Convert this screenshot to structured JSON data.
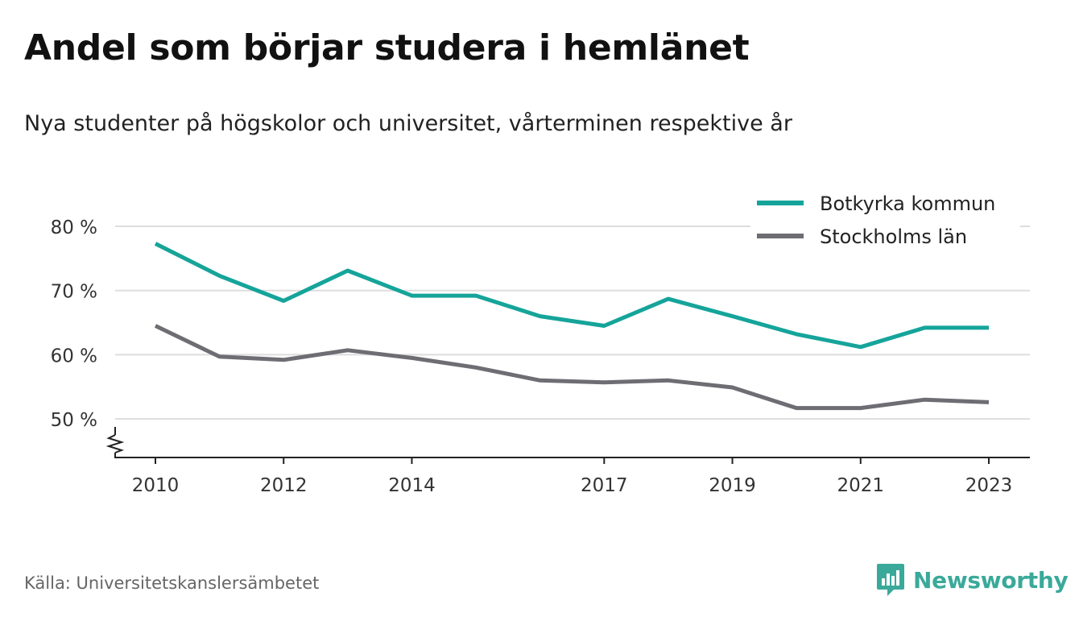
{
  "title": "Andel som börjar studera i hemlänet",
  "subtitle": "Nya studenter på högskolor och universitet, vårterminen respektive år",
  "source": "Källa: Universitetskanslersämbetet",
  "brand": {
    "name": "Newsworthy",
    "color": "#3aa99a"
  },
  "chart_data": {
    "type": "line",
    "x": [
      2010,
      2011,
      2012,
      2013,
      2014,
      2015,
      2016,
      2017,
      2018,
      2019,
      2020,
      2021,
      2022,
      2023
    ],
    "x_tick_labels": [
      "2010",
      "2012",
      "2014",
      "2017",
      "2019",
      "2021",
      "2023"
    ],
    "y_ticks": [
      50,
      60,
      70,
      80
    ],
    "y_tick_labels": [
      "50 %",
      "60 %",
      "70 %",
      "80 %"
    ],
    "ylim": [
      44,
      80
    ],
    "axis_break": true,
    "grid": true,
    "legend_position": "top-right",
    "series": [
      {
        "name": "Botkyrka kommun",
        "color": "#15a49a",
        "values": [
          77.3,
          72.3,
          68.4,
          73.1,
          69.2,
          69.2,
          66.0,
          64.5,
          68.7,
          66.0,
          63.2,
          61.2,
          64.2,
          64.2
        ]
      },
      {
        "name": "Stockholms län",
        "color": "#6e6d73",
        "values": [
          64.5,
          59.7,
          59.2,
          60.7,
          59.5,
          58.0,
          56.0,
          55.7,
          56.0,
          54.9,
          51.7,
          51.7,
          53.0,
          52.6
        ]
      }
    ]
  }
}
